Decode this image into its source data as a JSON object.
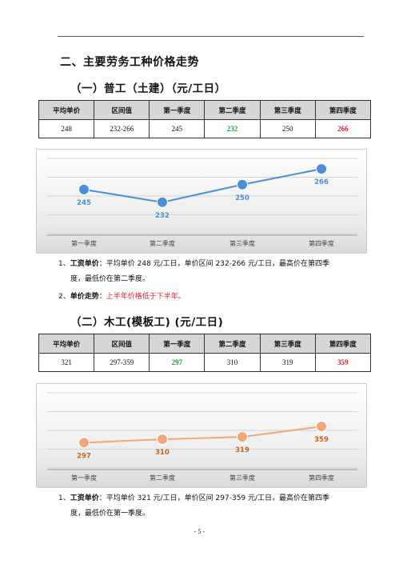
{
  "section_title": "二、主要劳务工种价格走势",
  "sub1": {
    "title": "（一）普工（土建）（元/工日）",
    "headers": [
      "平均单价",
      "区间值",
      "第一季度",
      "第二季度",
      "第三季度",
      "第四季度"
    ],
    "row": [
      "248",
      "232-266",
      "245",
      "232",
      "250",
      "266"
    ]
  },
  "sub2": {
    "title": "（二）木工(模板工) (元/工日)",
    "headers": [
      "平均单价",
      "区间值",
      "第一季度",
      "第二季度",
      "第三季度",
      "第四季度"
    ],
    "row": [
      "321",
      "297-359",
      "297",
      "310",
      "319",
      "359"
    ]
  },
  "chart_data": [
    {
      "type": "line",
      "categories": [
        "第一季度",
        "第二季度",
        "第三季度",
        "第四季度"
      ],
      "values": [
        245,
        232,
        250,
        266
      ],
      "color": "#4a90d9",
      "ylim": [
        200,
        280
      ],
      "grid": true
    },
    {
      "type": "line",
      "categories": [
        "第一季度",
        "第二季度",
        "第三季度",
        "第四季度"
      ],
      "values": [
        297,
        310,
        319,
        359
      ],
      "color": "#f0a878",
      "label_color": "#c8651a",
      "ylim": [
        200,
        500
      ],
      "grid": true
    }
  ],
  "notes1": {
    "n1_num": "1、",
    "n1_label": "工资单价",
    "n1_text": "：平均单价 248 元/工日，单价区间 232-266 元/工日，最高价在第四季",
    "n1_cont": "度，最低价在第二季度。",
    "n2_num": "2、",
    "n2_label": "单价走势",
    "n2_colon": "：",
    "n2_text": "上半年价格低于下半年。"
  },
  "notes2": {
    "n1_num": "1、",
    "n1_label": "工资单价",
    "n1_text": "：平均单价 321 元/工日，单价区间 297-359 元/工日，最高价在第四季",
    "n1_cont": "度，最低价在第一季度。"
  },
  "page_number": "- 5 -"
}
